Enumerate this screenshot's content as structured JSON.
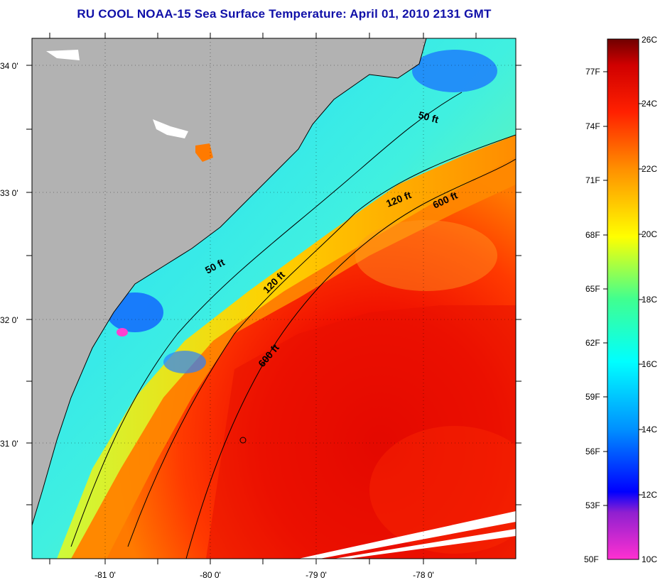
{
  "title": "RU COOL  NOAA-15  Sea Surface Temperature:  April 01, 2010 2131 GMT",
  "map": {
    "lat_ticks": [
      "34 0'",
      "33 0'",
      "32 0'",
      "31 0'"
    ],
    "lon_ticks": [
      "-81 0'",
      "-80 0'",
      "-79 0'",
      "-78 0'"
    ],
    "land_color": "#b2b2b2",
    "contours": [
      {
        "label": "50 ft"
      },
      {
        "label": "50 ft"
      },
      {
        "label": "120 ft"
      },
      {
        "label": "120 ft"
      },
      {
        "label": "600 ft"
      },
      {
        "label": "600 ft"
      }
    ]
  },
  "colorbar": {
    "fahrenheit": [
      "77F",
      "74F",
      "71F",
      "68F",
      "65F",
      "62F",
      "59F",
      "56F",
      "53F",
      "50F"
    ],
    "celsius": [
      "26C",
      "24C",
      "22C",
      "20C",
      "18C",
      "16C",
      "14C",
      "12C",
      "10C"
    ],
    "colors": [
      "#ff30d0",
      "#9020d0",
      "#0000ff",
      "#0090ff",
      "#00ffff",
      "#40ff90",
      "#ffff00",
      "#ff9000",
      "#ff2000",
      "#d00000",
      "#700000"
    ]
  }
}
